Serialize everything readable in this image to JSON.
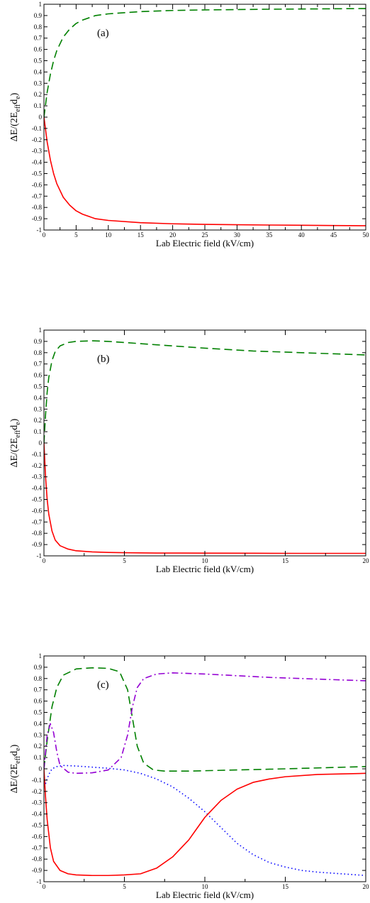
{
  "chart_data": [
    {
      "type": "line",
      "panel_label": "(a)",
      "xlabel": "Lab Electric field (kV/cm)",
      "ylabel_parts": [
        "ΔE/(2E",
        "eff",
        "d",
        "e",
        ")"
      ],
      "xlim": [
        0,
        50
      ],
      "ylim": [
        -1,
        1
      ],
      "xticks": [
        0,
        5,
        10,
        15,
        20,
        25,
        30,
        35,
        40,
        45,
        50
      ],
      "yticks": [
        -1,
        -0.9,
        -0.8,
        -0.7,
        -0.6,
        -0.5,
        -0.4,
        -0.3,
        -0.2,
        -0.1,
        0,
        0.1,
        0.2,
        0.3,
        0.4,
        0.5,
        0.6,
        0.7,
        0.8,
        0.9,
        1
      ],
      "xtick_labels": [
        "0",
        "5",
        "10",
        "15",
        "20",
        "25",
        "30",
        "35",
        "40",
        "45",
        "50"
      ],
      "ytick_labels": [
        "-1",
        "-0.9",
        "-0.8",
        "-0.7",
        "-0.6",
        "-0.5",
        "-0.4",
        "-0.3",
        "-0.2",
        "-0.1",
        "0",
        "0.1",
        "0.2",
        "0.3",
        "0.4",
        "0.5",
        "0.6",
        "0.7",
        "0.8",
        "0.9",
        "1"
      ],
      "series": [
        {
          "color": "#008000",
          "style": "dashed",
          "x": [
            0,
            0.5,
            1,
            1.5,
            2,
            3,
            4,
            5,
            6,
            8,
            10,
            15,
            20,
            25,
            30,
            35,
            40,
            45,
            50
          ],
          "y": [
            0,
            0.22,
            0.38,
            0.5,
            0.59,
            0.71,
            0.78,
            0.83,
            0.86,
            0.9,
            0.915,
            0.935,
            0.945,
            0.95,
            0.953,
            0.956,
            0.958,
            0.96,
            0.962
          ]
        },
        {
          "color": "#ff0000",
          "style": "solid",
          "x": [
            0,
            0.5,
            1,
            1.5,
            2,
            3,
            4,
            5,
            6,
            8,
            10,
            15,
            20,
            25,
            30,
            35,
            40,
            45,
            50
          ],
          "y": [
            0,
            -0.22,
            -0.38,
            -0.5,
            -0.59,
            -0.71,
            -0.78,
            -0.83,
            -0.86,
            -0.9,
            -0.915,
            -0.935,
            -0.945,
            -0.95,
            -0.953,
            -0.956,
            -0.958,
            -0.96,
            -0.962
          ]
        }
      ]
    },
    {
      "type": "line",
      "panel_label": "(b)",
      "xlabel": "Lab Electric field (kV/cm)",
      "ylabel_parts": [
        "ΔE/(2E",
        "eff",
        "d",
        "e",
        ")"
      ],
      "xlim": [
        0,
        20
      ],
      "ylim": [
        -1,
        1
      ],
      "xticks": [
        0,
        5,
        10,
        15,
        20
      ],
      "yticks": [
        -1,
        -0.9,
        -0.8,
        -0.7,
        -0.6,
        -0.5,
        -0.4,
        -0.3,
        -0.2,
        -0.1,
        0,
        0.1,
        0.2,
        0.3,
        0.4,
        0.5,
        0.6,
        0.7,
        0.8,
        0.9,
        1
      ],
      "xtick_labels": [
        "0",
        "5",
        "10",
        "15",
        "20"
      ],
      "ytick_labels": [
        "-1",
        "-0.9",
        "-0.8",
        "-0.7",
        "-0.6",
        "-0.5",
        "-0.4",
        "-0.3",
        "-0.2",
        "-0.1",
        "0",
        "0.1",
        "0.2",
        "0.3",
        "0.4",
        "0.5",
        "0.6",
        "0.7",
        "0.8",
        "0.9",
        "1"
      ],
      "series": [
        {
          "color": "#008000",
          "style": "dashed",
          "x": [
            0,
            0.1,
            0.2,
            0.3,
            0.5,
            0.7,
            1,
            1.5,
            2,
            3,
            4,
            5,
            7,
            10,
            13,
            16,
            20
          ],
          "y": [
            0,
            0.25,
            0.45,
            0.58,
            0.73,
            0.81,
            0.86,
            0.89,
            0.9,
            0.905,
            0.9,
            0.89,
            0.87,
            0.84,
            0.815,
            0.8,
            0.78
          ]
        },
        {
          "color": "#ff0000",
          "style": "solid",
          "x": [
            0,
            0.1,
            0.2,
            0.3,
            0.5,
            0.7,
            1,
            1.5,
            2,
            3,
            4,
            5,
            7,
            10,
            13,
            16,
            20
          ],
          "y": [
            0,
            -0.3,
            -0.5,
            -0.63,
            -0.78,
            -0.86,
            -0.91,
            -0.94,
            -0.955,
            -0.965,
            -0.97,
            -0.972,
            -0.975,
            -0.976,
            -0.977,
            -0.978,
            -0.978
          ]
        }
      ]
    },
    {
      "type": "line",
      "panel_label": "(c)",
      "xlabel": "Lab Electric field (kV/cm)",
      "ylabel_parts": [
        "ΔE/(2E",
        "eff",
        "d",
        "e",
        ")"
      ],
      "xlim": [
        0,
        20
      ],
      "ylim": [
        -1,
        1
      ],
      "xticks": [
        0,
        5,
        10,
        15,
        20
      ],
      "yticks": [
        -1,
        -0.9,
        -0.8,
        -0.7,
        -0.6,
        -0.5,
        -0.4,
        -0.3,
        -0.2,
        -0.1,
        0,
        0.1,
        0.2,
        0.3,
        0.4,
        0.5,
        0.6,
        0.7,
        0.8,
        0.9,
        1
      ],
      "xtick_labels": [
        "0",
        "5",
        "10",
        "15",
        "20"
      ],
      "ytick_labels": [
        "-1",
        "-0.9",
        "-0.8",
        "-0.7",
        "-0.6",
        "-0.5",
        "-0.4",
        "-0.3",
        "-0.2",
        "-0.1",
        "0",
        "0.1",
        "0.2",
        "0.3",
        "0.4",
        "0.5",
        "0.6",
        "0.7",
        "0.8",
        "0.9",
        "1"
      ],
      "series": [
        {
          "color": "#008000",
          "style": "dashed",
          "x": [
            0,
            0.2,
            0.5,
            0.8,
            1.2,
            2,
            3,
            4,
            4.7,
            5.2,
            5.5,
            5.8,
            6.2,
            6.8,
            7.5,
            9,
            12,
            15,
            20
          ],
          "y": [
            0,
            0.25,
            0.55,
            0.72,
            0.83,
            0.885,
            0.895,
            0.89,
            0.86,
            0.7,
            0.45,
            0.2,
            0.05,
            -0.01,
            -0.02,
            -0.02,
            -0.01,
            0.0,
            0.02
          ]
        },
        {
          "color": "#9400d3",
          "style": "dashdot",
          "x": [
            0,
            0.2,
            0.4,
            0.6,
            0.8,
            1,
            1.5,
            2,
            3,
            4,
            4.8,
            5.2,
            5.5,
            5.8,
            6.2,
            7,
            8,
            10,
            14,
            17,
            20
          ],
          "y": [
            0,
            0.3,
            0.4,
            0.32,
            0.15,
            0.03,
            -0.03,
            -0.04,
            -0.035,
            -0.01,
            0.1,
            0.3,
            0.55,
            0.72,
            0.8,
            0.84,
            0.85,
            0.84,
            0.81,
            0.795,
            0.78
          ]
        },
        {
          "color": "#0000ff",
          "style": "dotted",
          "x": [
            0,
            0.1,
            0.3,
            0.5,
            0.8,
            1.2,
            2,
            3,
            4,
            5,
            6,
            7,
            8,
            9,
            10,
            11,
            12,
            13,
            14,
            15,
            16,
            17,
            18,
            19,
            20
          ],
          "y": [
            -0.1,
            -0.13,
            -0.05,
            0.0,
            0.02,
            0.03,
            0.025,
            0.015,
            0.005,
            -0.01,
            -0.04,
            -0.09,
            -0.16,
            -0.26,
            -0.38,
            -0.52,
            -0.66,
            -0.76,
            -0.83,
            -0.87,
            -0.9,
            -0.915,
            -0.925,
            -0.935,
            -0.945
          ]
        },
        {
          "color": "#ff0000",
          "style": "solid",
          "x": [
            0,
            0.1,
            0.2,
            0.4,
            0.6,
            1,
            1.5,
            2,
            3,
            4,
            5,
            6,
            7,
            8,
            9,
            9.5,
            10,
            11,
            12,
            13,
            14,
            15,
            17,
            20
          ],
          "y": [
            0,
            -0.25,
            -0.45,
            -0.7,
            -0.82,
            -0.9,
            -0.93,
            -0.94,
            -0.945,
            -0.945,
            -0.94,
            -0.93,
            -0.88,
            -0.78,
            -0.63,
            -0.53,
            -0.43,
            -0.28,
            -0.18,
            -0.12,
            -0.09,
            -0.07,
            -0.05,
            -0.04
          ]
        }
      ]
    }
  ]
}
